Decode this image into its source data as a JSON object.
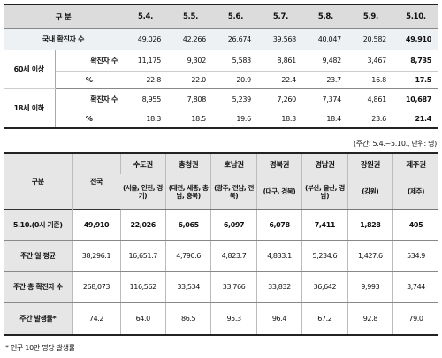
{
  "table1": {
    "header": {
      "label": "구 분",
      "dates": [
        "5.4.",
        "5.5.",
        "5.6.",
        "5.7.",
        "5.8.",
        "5.9.",
        "5.10."
      ]
    },
    "total": {
      "label": "국내 확진자 수",
      "values": [
        "49,026",
        "42,266",
        "26,674",
        "39,568",
        "40,047",
        "20,582",
        "49,910"
      ]
    },
    "groups": [
      {
        "label": "60세 이상",
        "cases_label": "확진자 수",
        "cases": [
          "11,175",
          "9,302",
          "5,583",
          "8,861",
          "9,482",
          "3,467",
          "8,735"
        ],
        "pct_label": "%",
        "pct": [
          "22.8",
          "22.0",
          "20.9",
          "22.4",
          "23.7",
          "16.8",
          "17.5"
        ]
      },
      {
        "label": "18세 이하",
        "cases_label": "확진자 수",
        "cases": [
          "8,955",
          "7,808",
          "5,239",
          "7,260",
          "7,374",
          "4,861",
          "10,687"
        ],
        "pct_label": "%",
        "pct": [
          "18.3",
          "18.5",
          "19.6",
          "18.3",
          "18.4",
          "23.6",
          "21.4"
        ]
      }
    ]
  },
  "unit_note": "(주간: 5.4.~5.10., 단위: 명)",
  "table2": {
    "corner_label": "구분",
    "national_label": "전국",
    "regions": [
      {
        "name": "수도권",
        "sub": "(서울, 인천, 경기)"
      },
      {
        "name": "충청권",
        "sub": "(대전, 세종, 충남, 충북)"
      },
      {
        "name": "호남권",
        "sub": "(광주, 전남, 전북)"
      },
      {
        "name": "경북권",
        "sub": "(대구, 경북)"
      },
      {
        "name": "경남권",
        "sub": "(부산, 울산, 경남)"
      },
      {
        "name": "강원권",
        "sub": "(강원)"
      },
      {
        "name": "제주권",
        "sub": "(제주)"
      }
    ],
    "rows": [
      {
        "label": "5.10.(0시 기준)",
        "values": [
          "49,910",
          "22,026",
          "6,065",
          "6,097",
          "6,078",
          "7,411",
          "1,828",
          "405"
        ]
      },
      {
        "label": "주간 일 평균",
        "values": [
          "38,296.1",
          "16,651.7",
          "4,790.6",
          "4,823.7",
          "4,833.1",
          "5,234.6",
          "1,427.6",
          "534.9"
        ]
      },
      {
        "label": "주간 총 확진자 수",
        "values": [
          "268,073",
          "116,562",
          "33,534",
          "33,766",
          "33,832",
          "36,642",
          "9,993",
          "3,744"
        ]
      },
      {
        "label": "주간 발생률*",
        "values": [
          "74.2",
          "64.0",
          "86.5",
          "95.3",
          "96.4",
          "67.2",
          "92.8",
          "79.0"
        ]
      }
    ]
  },
  "footnote": "* 인구 10만 명당 발생률"
}
